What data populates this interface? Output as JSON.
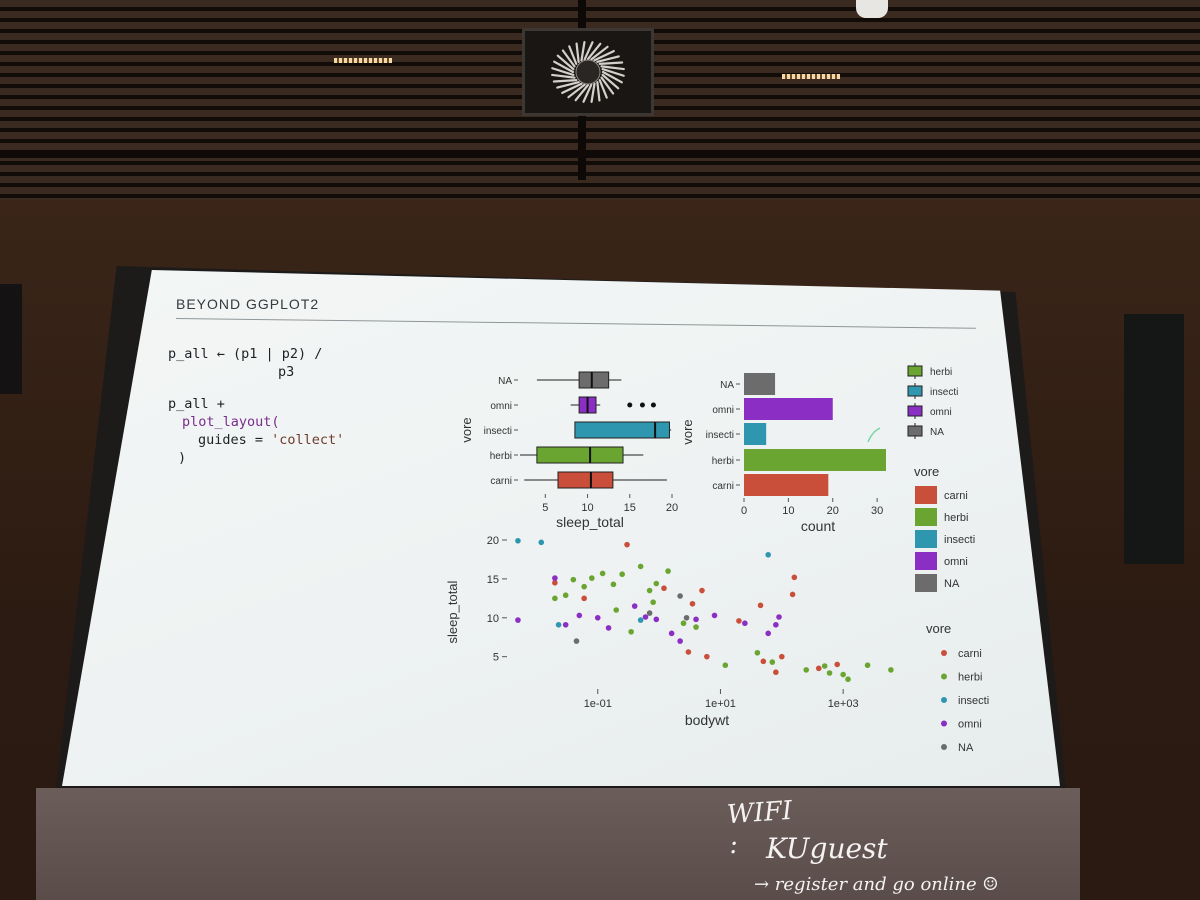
{
  "slide": {
    "title": "BEYOND GGPLOT2",
    "code": {
      "line1": "p_all ← (p1 | p2) /",
      "line2": "p3",
      "line3": "p_all +",
      "line4_fn": "plot_layout(",
      "line5_arg": "guides = ",
      "line5_str": "'collect'",
      "line6": ")"
    }
  },
  "whiteboard": {
    "line1": "WIFI :",
    "line2": "KUguest",
    "line3": "→ register and go online ☺"
  },
  "colors": {
    "carni": "#c94f3b",
    "herbi": "#6aa531",
    "insecti": "#2f96b0",
    "omni": "#8a2ec4",
    "NA": "#6c6c6c"
  },
  "chart_data": [
    {
      "type": "box",
      "ylabel": "vore",
      "xlabel": "sleep_total",
      "categories": [
        "NA",
        "omni",
        "insecti",
        "herbi",
        "carni"
      ],
      "x_ticks": [
        "5",
        "10",
        "15",
        "20"
      ],
      "xlim": [
        2,
        20
      ],
      "boxes": [
        {
          "group": "NA",
          "min": 4,
          "q1": 9,
          "median": 10.5,
          "q3": 12.5,
          "max": 14
        },
        {
          "group": "omni",
          "min": 8,
          "q1": 9,
          "median": 10,
          "q3": 11,
          "max": 11.5,
          "outliers": [
            15,
            16.5,
            17.8
          ]
        },
        {
          "group": "insecti",
          "min": 8.5,
          "q1": 8.5,
          "median": 18,
          "q3": 19.7,
          "max": 19.9
        },
        {
          "group": "herbi",
          "min": 2,
          "q1": 4,
          "median": 10.3,
          "q3": 14.2,
          "max": 16.6
        },
        {
          "group": "carni",
          "min": 2.5,
          "q1": 6.5,
          "median": 10.4,
          "q3": 13,
          "max": 19.4
        }
      ]
    },
    {
      "type": "bar",
      "orientation": "horizontal",
      "ylabel": "vore",
      "xlabel": "count",
      "categories": [
        "NA",
        "omni",
        "insecti",
        "herbi",
        "carni"
      ],
      "values": [
        7,
        20,
        5,
        32,
        19
      ],
      "x_ticks": [
        "0",
        "10",
        "20",
        "30"
      ],
      "xlim": [
        0,
        32
      ]
    },
    {
      "type": "scatter",
      "xlabel": "bodywt",
      "ylabel": "sleep_total",
      "x_scale": "log10",
      "x_ticks": [
        "1e-01",
        "1e+01",
        "1e+03"
      ],
      "y_ticks": [
        "5",
        "10",
        "15",
        "20"
      ],
      "xlim": [
        0.004,
        7000
      ],
      "ylim": [
        2,
        20
      ],
      "points": [
        {
          "vore": "insecti",
          "bodywt": 0.005,
          "sleep_total": 19.9
        },
        {
          "vore": "insecti",
          "bodywt": 0.012,
          "sleep_total": 19.7
        },
        {
          "vore": "insecti",
          "bodywt": 60,
          "sleep_total": 18.1
        },
        {
          "vore": "insecti",
          "bodywt": 0.023,
          "sleep_total": 9.1
        },
        {
          "vore": "insecti",
          "bodywt": 0.5,
          "sleep_total": 9.7
        },
        {
          "vore": "carni",
          "bodywt": 0.3,
          "sleep_total": 19.4
        },
        {
          "vore": "carni",
          "bodywt": 0.02,
          "sleep_total": 14.5
        },
        {
          "vore": "carni",
          "bodywt": 0.06,
          "sleep_total": 12.5
        },
        {
          "vore": "carni",
          "bodywt": 1.2,
          "sleep_total": 13.8
        },
        {
          "vore": "carni",
          "bodywt": 3.5,
          "sleep_total": 11.8
        },
        {
          "vore": "carni",
          "bodywt": 5,
          "sleep_total": 13.5
        },
        {
          "vore": "carni",
          "bodywt": 160,
          "sleep_total": 15.2
        },
        {
          "vore": "carni",
          "bodywt": 150,
          "sleep_total": 13.0
        },
        {
          "vore": "carni",
          "bodywt": 45,
          "sleep_total": 11.6
        },
        {
          "vore": "carni",
          "bodywt": 20,
          "sleep_total": 9.6
        },
        {
          "vore": "carni",
          "bodywt": 3,
          "sleep_total": 5.6
        },
        {
          "vore": "carni",
          "bodywt": 6,
          "sleep_total": 5.0
        },
        {
          "vore": "carni",
          "bodywt": 50,
          "sleep_total": 4.4
        },
        {
          "vore": "carni",
          "bodywt": 100,
          "sleep_total": 5.0
        },
        {
          "vore": "carni",
          "bodywt": 400,
          "sleep_total": 3.5
        },
        {
          "vore": "carni",
          "bodywt": 800,
          "sleep_total": 4.0
        },
        {
          "vore": "carni",
          "bodywt": 80,
          "sleep_total": 3.0
        },
        {
          "vore": "herbi",
          "bodywt": 0.02,
          "sleep_total": 12.5
        },
        {
          "vore": "herbi",
          "bodywt": 0.04,
          "sleep_total": 14.9
        },
        {
          "vore": "herbi",
          "bodywt": 0.06,
          "sleep_total": 14.0
        },
        {
          "vore": "herbi",
          "bodywt": 0.08,
          "sleep_total": 15.1
        },
        {
          "vore": "herbi",
          "bodywt": 0.12,
          "sleep_total": 15.7
        },
        {
          "vore": "herbi",
          "bodywt": 0.18,
          "sleep_total": 14.3
        },
        {
          "vore": "herbi",
          "bodywt": 0.25,
          "sleep_total": 15.6
        },
        {
          "vore": "herbi",
          "bodywt": 0.5,
          "sleep_total": 16.6
        },
        {
          "vore": "herbi",
          "bodywt": 0.7,
          "sleep_total": 13.5
        },
        {
          "vore": "herbi",
          "bodywt": 0.8,
          "sleep_total": 12.0
        },
        {
          "vore": "herbi",
          "bodywt": 1.4,
          "sleep_total": 16.0
        },
        {
          "vore": "herbi",
          "bodywt": 0.03,
          "sleep_total": 12.9
        },
        {
          "vore": "herbi",
          "bodywt": 0.2,
          "sleep_total": 11.0
        },
        {
          "vore": "herbi",
          "bodywt": 0.35,
          "sleep_total": 8.2
        },
        {
          "vore": "herbi",
          "bodywt": 2.5,
          "sleep_total": 9.3
        },
        {
          "vore": "herbi",
          "bodywt": 4,
          "sleep_total": 8.8
        },
        {
          "vore": "herbi",
          "bodywt": 12,
          "sleep_total": 3.9
        },
        {
          "vore": "herbi",
          "bodywt": 40,
          "sleep_total": 5.5
        },
        {
          "vore": "herbi",
          "bodywt": 70,
          "sleep_total": 4.3
        },
        {
          "vore": "herbi",
          "bodywt": 250,
          "sleep_total": 3.3
        },
        {
          "vore": "herbi",
          "bodywt": 500,
          "sleep_total": 3.8
        },
        {
          "vore": "herbi",
          "bodywt": 600,
          "sleep_total": 2.9
        },
        {
          "vore": "herbi",
          "bodywt": 1000,
          "sleep_total": 2.7
        },
        {
          "vore": "herbi",
          "bodywt": 1200,
          "sleep_total": 2.1
        },
        {
          "vore": "herbi",
          "bodywt": 2500,
          "sleep_total": 3.9
        },
        {
          "vore": "herbi",
          "bodywt": 6000,
          "sleep_total": 3.3
        },
        {
          "vore": "herbi",
          "bodywt": 0.9,
          "sleep_total": 14.4
        },
        {
          "vore": "omni",
          "bodywt": 0.005,
          "sleep_total": 9.7
        },
        {
          "vore": "omni",
          "bodywt": 0.02,
          "sleep_total": 15.1
        },
        {
          "vore": "omni",
          "bodywt": 0.03,
          "sleep_total": 9.1
        },
        {
          "vore": "omni",
          "bodywt": 0.05,
          "sleep_total": 10.3
        },
        {
          "vore": "omni",
          "bodywt": 0.1,
          "sleep_total": 10.0
        },
        {
          "vore": "omni",
          "bodywt": 0.15,
          "sleep_total": 8.7
        },
        {
          "vore": "omni",
          "bodywt": 0.4,
          "sleep_total": 11.5
        },
        {
          "vore": "omni",
          "bodywt": 0.6,
          "sleep_total": 10.1
        },
        {
          "vore": "omni",
          "bodywt": 0.9,
          "sleep_total": 9.8
        },
        {
          "vore": "omni",
          "bodywt": 1.6,
          "sleep_total": 8.0
        },
        {
          "vore": "omni",
          "bodywt": 4,
          "sleep_total": 9.8
        },
        {
          "vore": "omni",
          "bodywt": 8,
          "sleep_total": 10.3
        },
        {
          "vore": "omni",
          "bodywt": 25,
          "sleep_total": 9.3
        },
        {
          "vore": "omni",
          "bodywt": 60,
          "sleep_total": 8.0
        },
        {
          "vore": "omni",
          "bodywt": 80,
          "sleep_total": 9.1
        },
        {
          "vore": "omni",
          "bodywt": 90,
          "sleep_total": 10.1
        },
        {
          "vore": "omni",
          "bodywt": 2.2,
          "sleep_total": 7.0
        },
        {
          "vore": "NA",
          "bodywt": 0.045,
          "sleep_total": 7.0
        },
        {
          "vore": "NA",
          "bodywt": 0.7,
          "sleep_total": 10.6
        },
        {
          "vore": "NA",
          "bodywt": 2.2,
          "sleep_total": 12.8
        },
        {
          "vore": "NA",
          "bodywt": 2.8,
          "sleep_total": 10.0
        }
      ]
    }
  ],
  "legends": {
    "fill_legend_a": [
      "herbi",
      "insecti",
      "omni",
      "NA"
    ],
    "fill_legend_b": {
      "title": "vore",
      "items": [
        "carni",
        "herbi",
        "insecti",
        "omni",
        "NA"
      ]
    },
    "point_legend": {
      "title": "vore",
      "items": [
        "carni",
        "herbi",
        "insecti",
        "omni",
        "NA"
      ]
    }
  }
}
